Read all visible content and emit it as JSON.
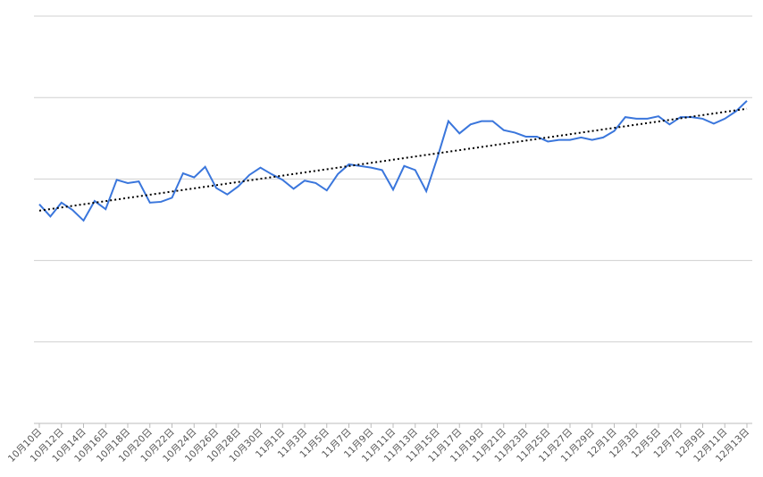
{
  "chart_data": {
    "type": "line",
    "categories": [
      "10月10日",
      null,
      "10月12日",
      null,
      "10月14日",
      null,
      "10月16日",
      null,
      "10月18日",
      null,
      "10月20日",
      null,
      "10月22日",
      null,
      "10月24日",
      null,
      "10月26日",
      null,
      "10月28日",
      null,
      "10月30日",
      null,
      "11月1日",
      null,
      "11月3日",
      null,
      "11月5日",
      null,
      "11月7日",
      null,
      "11月9日",
      null,
      "11月11日",
      null,
      "11月13日",
      null,
      "11月15日",
      null,
      "11月17日",
      null,
      "11月19日",
      null,
      "11月21日",
      null,
      "11月23日",
      null,
      "11月25日",
      null,
      "11月27日",
      null,
      "11月29日",
      null,
      "12月1日",
      null,
      "12月3日",
      null,
      "12月5日",
      null,
      "12月7日",
      null,
      "12月9日",
      null,
      "12月11日",
      null,
      "12月13日"
    ],
    "values": [
      2.69,
      2.54,
      2.71,
      2.62,
      2.49,
      2.73,
      2.63,
      2.99,
      2.95,
      2.97,
      2.71,
      2.72,
      2.77,
      3.07,
      3.02,
      3.15,
      2.89,
      2.81,
      2.91,
      3.05,
      3.14,
      3.06,
      2.99,
      2.88,
      2.98,
      2.95,
      2.86,
      3.06,
      3.18,
      3.16,
      3.14,
      3.11,
      2.87,
      3.16,
      3.11,
      2.85,
      3.26,
      3.71,
      3.56,
      3.67,
      3.71,
      3.71,
      3.6,
      3.57,
      3.52,
      3.52,
      3.46,
      3.48,
      3.48,
      3.51,
      3.48,
      3.51,
      3.59,
      3.76,
      3.74,
      3.74,
      3.77,
      3.67,
      3.76,
      3.76,
      3.74,
      3.68,
      3.74,
      3.83,
      3.96
    ],
    "color": "#3a76dc",
    "trendline": true,
    "trendline_color": "#000000",
    "ylim": [
      0,
      5
    ],
    "yticks": [
      0,
      1,
      2,
      3,
      4,
      5
    ],
    "grid": true,
    "show_ytick_labels": false
  }
}
